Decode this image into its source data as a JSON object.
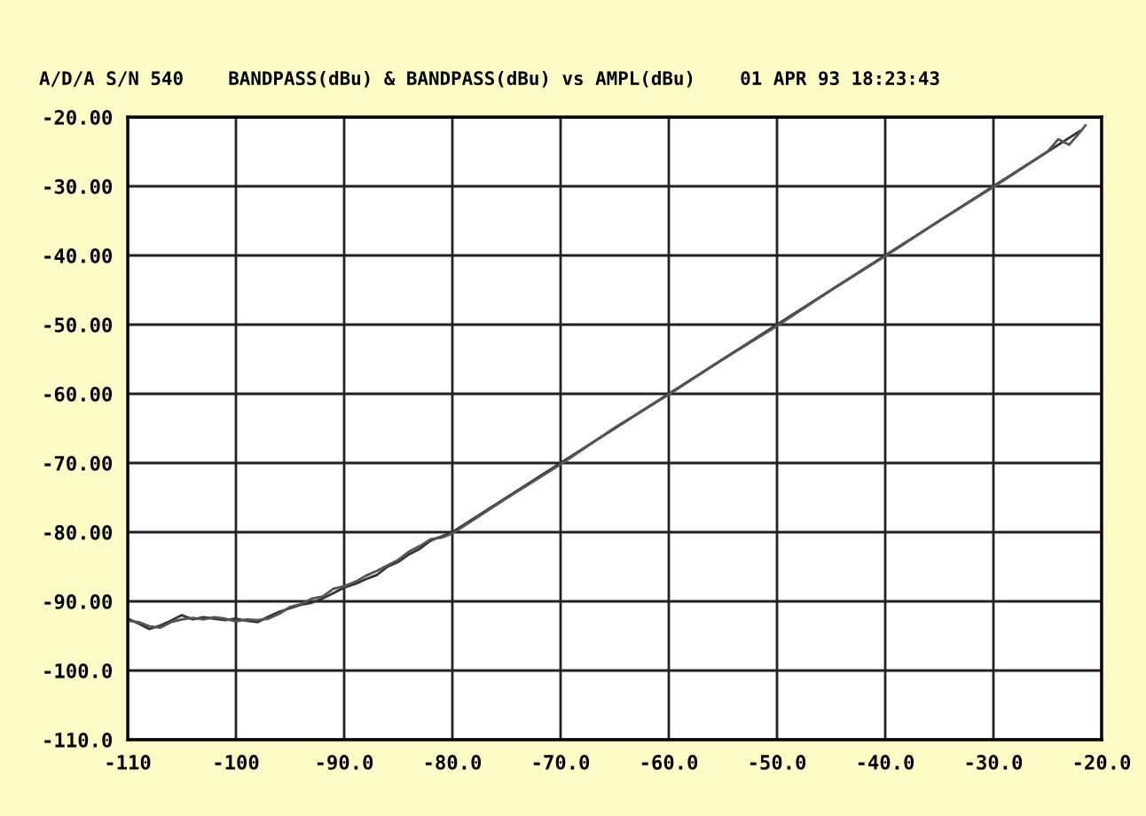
{
  "chart_data": {
    "type": "line",
    "title": "A/D/A S/N 540    BANDPASS(dBu) & BANDPASS(dBu) vs AMPL(dBu)    01 APR 93 18:23:43",
    "series": [
      {
        "color": "#333333",
        "x": [
          -110,
          -109,
          -108,
          -107,
          -106,
          -105,
          -104,
          -103,
          -102,
          -101,
          -100,
          -99,
          -98,
          -97,
          -96,
          -95,
          -94,
          -93,
          -92,
          -91,
          -90,
          -89,
          -88,
          -87,
          -86,
          -85,
          -84,
          -83,
          -82,
          -81,
          -80,
          -75,
          -70,
          -65,
          -60,
          -55,
          -50,
          -45,
          -40,
          -35,
          -30,
          -25,
          -22
        ],
        "values": [
          -92.5,
          -93.2,
          -94.0,
          -93.5,
          -92.8,
          -92.0,
          -92.6,
          -92.3,
          -92.5,
          -92.7,
          -92.5,
          -92.8,
          -93.0,
          -92.2,
          -91.5,
          -91.0,
          -90.5,
          -90.2,
          -89.6,
          -88.8,
          -88.0,
          -87.5,
          -86.8,
          -86.2,
          -85.0,
          -84.3,
          -83.2,
          -82.4,
          -81.2,
          -80.6,
          -80.0,
          -75.0,
          -70.0,
          -65.0,
          -60.0,
          -55.0,
          -50.0,
          -45.0,
          -40.0,
          -35.0,
          -30.0,
          -25.0,
          -22.0
        ]
      },
      {
        "color": "#555555",
        "x": [
          -110,
          -109,
          -108,
          -107,
          -106,
          -105,
          -104,
          -103,
          -102,
          -101,
          -100,
          -99,
          -98,
          -97,
          -96,
          -95,
          -94,
          -93,
          -92,
          -91,
          -90,
          -89,
          -88,
          -87,
          -86,
          -85,
          -84,
          -83,
          -82,
          -81,
          -80,
          -75,
          -70,
          -65,
          -60,
          -55,
          -50,
          -45,
          -40,
          -35,
          -30,
          -25,
          -24,
          -23,
          -22,
          -21.5
        ],
        "values": [
          -92.8,
          -93.0,
          -93.6,
          -93.8,
          -93.0,
          -92.6,
          -92.4,
          -92.6,
          -92.3,
          -92.5,
          -92.9,
          -92.6,
          -92.7,
          -92.5,
          -91.8,
          -90.8,
          -90.4,
          -89.6,
          -89.3,
          -88.2,
          -87.8,
          -87.2,
          -86.3,
          -85.6,
          -84.8,
          -84.0,
          -82.8,
          -82.0,
          -81.0,
          -80.8,
          -80.2,
          -75.1,
          -70.2,
          -64.9,
          -60.1,
          -55.0,
          -50.2,
          -45.0,
          -40.1,
          -35.0,
          -30.1,
          -25.0,
          -23.2,
          -24.0,
          -22.2,
          -21.2
        ]
      }
    ],
    "xlim": [
      -110,
      -20
    ],
    "xticks": [
      {
        "value": -110,
        "label": "-110"
      },
      {
        "value": -100,
        "label": "-100"
      },
      {
        "value": -90,
        "label": "-90.0"
      },
      {
        "value": -80,
        "label": "-80.0"
      },
      {
        "value": -70,
        "label": "-70.0"
      },
      {
        "value": -60,
        "label": "-60.0"
      },
      {
        "value": -50,
        "label": "-50.0"
      },
      {
        "value": -40,
        "label": "-40.0"
      },
      {
        "value": -30,
        "label": "-30.0"
      },
      {
        "value": -20,
        "label": "-20.0"
      }
    ],
    "ylim": [
      -110,
      -20
    ],
    "yticks": [
      {
        "value": -110,
        "label": "-110.0"
      },
      {
        "value": -100,
        "label": "-100.0"
      },
      {
        "value": -90,
        "label": "-90.00"
      },
      {
        "value": -80,
        "label": "-80.00"
      },
      {
        "value": -70,
        "label": "-70.00"
      },
      {
        "value": -60,
        "label": "-60.00"
      },
      {
        "value": -50,
        "label": "-50.00"
      },
      {
        "value": -40,
        "label": "-40.00"
      },
      {
        "value": -30,
        "label": "-30.00"
      },
      {
        "value": -20,
        "label": "-20.00"
      }
    ],
    "grid": true,
    "marker": "none",
    "line_style": "solid"
  }
}
